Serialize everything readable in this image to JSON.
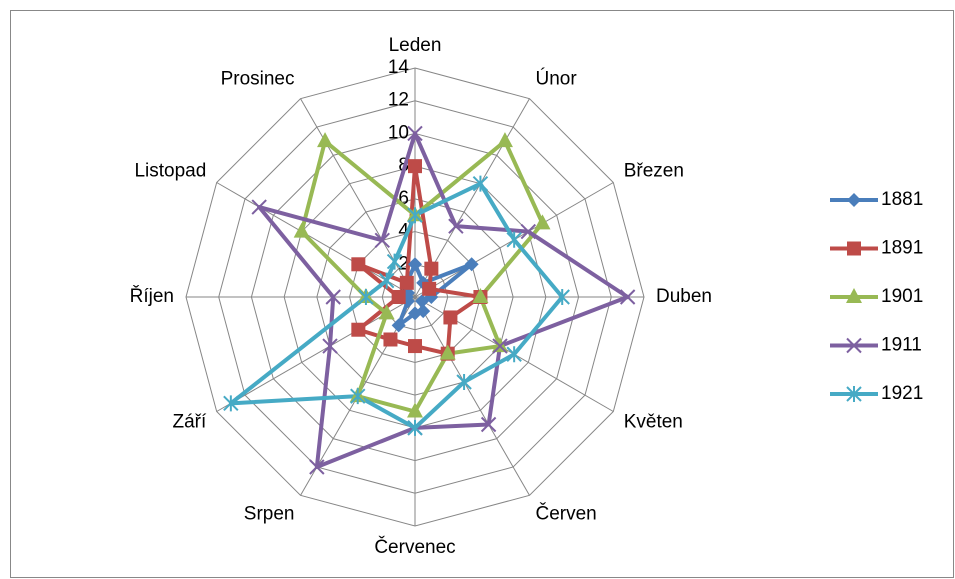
{
  "chart_data": {
    "type": "radar",
    "categories": [
      "Leden",
      "Únor",
      "Březen",
      "Duben",
      "Květen",
      "Červen",
      "Červenec",
      "Srpen",
      "Září",
      "Říjen",
      "Listopad",
      "Prosinec"
    ],
    "ylim": [
      0,
      14
    ],
    "yticks": [
      0,
      2,
      4,
      6,
      8,
      10,
      12,
      14
    ],
    "grid": true,
    "legend": "right",
    "series": [
      {
        "name": "1881",
        "color": "#4a7ebb",
        "marker": "diamond",
        "values": [
          2,
          1,
          4,
          1,
          0.5,
          1,
          1,
          2,
          0.5,
          0.5,
          0.5,
          1
        ]
      },
      {
        "name": "1891",
        "color": "#be4b48",
        "marker": "square",
        "values": [
          8,
          2,
          1,
          4,
          2.5,
          4,
          3,
          3,
          4,
          1,
          4,
          1
        ]
      },
      {
        "name": "1901",
        "color": "#98b954",
        "marker": "triangle",
        "values": [
          5,
          11,
          9,
          4,
          6,
          4,
          7,
          7,
          2,
          3,
          8,
          11
        ]
      },
      {
        "name": "1911",
        "color": "#7d60a0",
        "marker": "x",
        "values": [
          10,
          5,
          8,
          13,
          6,
          9,
          8,
          12,
          6,
          5,
          11,
          4
        ]
      },
      {
        "name": "1921",
        "color": "#46aac5",
        "marker": "star",
        "values": [
          5,
          8,
          7,
          9,
          7,
          6,
          8,
          7,
          13,
          3,
          2,
          2.5
        ]
      }
    ]
  }
}
